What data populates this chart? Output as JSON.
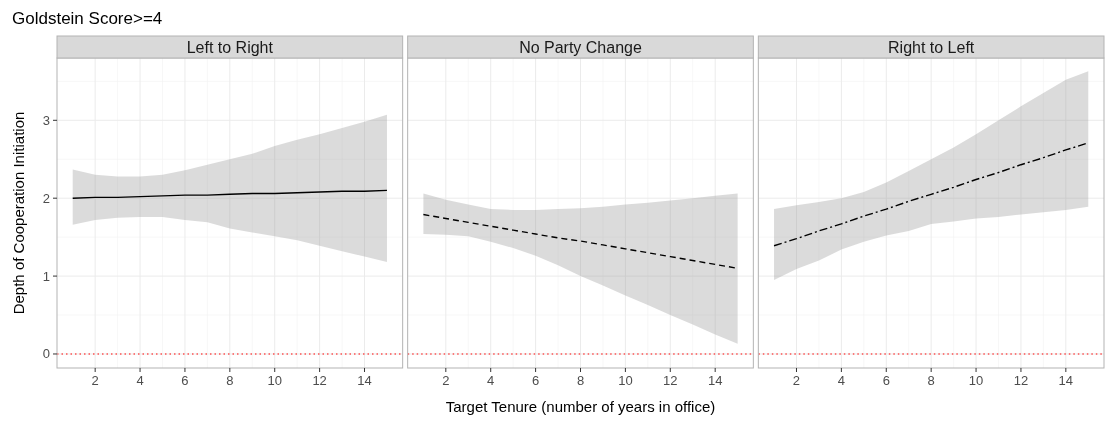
{
  "chart_data": [
    {
      "type": "line",
      "title": "Goldstein Score>=4",
      "subtitle": "Left to Right",
      "ylabel": "Depth of Cooperation Initiation",
      "xlim": [
        0.3,
        15.7
      ],
      "ylim": [
        -0.18,
        3.8
      ],
      "xticks": [
        2,
        4,
        6,
        8,
        10,
        12,
        14
      ],
      "yticks": [
        0,
        1,
        2,
        3
      ],
      "grid": true,
      "line_style": "solid",
      "ref_lines": [
        {
          "axis": "y",
          "value": 0,
          "color": "#ff0000",
          "line_style": "dotted"
        }
      ],
      "series": [
        {
          "color": "#000000",
          "x": [
            1,
            2,
            3,
            4,
            5,
            6,
            7,
            8,
            9,
            10,
            11,
            12,
            13,
            14,
            15
          ],
          "values": [
            2.0,
            2.01,
            2.01,
            2.02,
            2.03,
            2.04,
            2.04,
            2.05,
            2.06,
            2.06,
            2.07,
            2.08,
            2.09,
            2.09,
            2.1
          ],
          "lower": [
            1.66,
            1.72,
            1.75,
            1.76,
            1.76,
            1.72,
            1.69,
            1.61,
            1.56,
            1.51,
            1.46,
            1.39,
            1.32,
            1.25,
            1.18
          ],
          "upper": [
            2.37,
            2.3,
            2.28,
            2.28,
            2.3,
            2.36,
            2.43,
            2.5,
            2.57,
            2.67,
            2.75,
            2.82,
            2.9,
            2.98,
            3.07
          ]
        }
      ]
    },
    {
      "type": "line",
      "subtitle": "No Party Change",
      "xlabel": "Target Tenure (number of years in office)",
      "xlim": [
        0.3,
        15.7
      ],
      "ylim": [
        -0.18,
        3.8
      ],
      "xticks": [
        2,
        4,
        6,
        8,
        10,
        12,
        14
      ],
      "yticks": [
        0,
        1,
        2,
        3
      ],
      "tick_labels": "x",
      "grid": true,
      "line_style": "dashed",
      "ref_lines": [
        {
          "axis": "y",
          "value": 0,
          "color": "#ff0000",
          "line_style": "dotted"
        }
      ],
      "series": [
        {
          "color": "#000000",
          "x": [
            1,
            2,
            3,
            4,
            5,
            6,
            7,
            8,
            9,
            10,
            11,
            12,
            13,
            14,
            15
          ],
          "values": [
            1.79,
            1.74,
            1.69,
            1.64,
            1.59,
            1.54,
            1.49,
            1.45,
            1.4,
            1.35,
            1.3,
            1.25,
            1.2,
            1.15,
            1.1
          ],
          "lower": [
            1.54,
            1.53,
            1.51,
            1.44,
            1.36,
            1.26,
            1.14,
            1.0,
            0.88,
            0.75,
            0.63,
            0.5,
            0.38,
            0.25,
            0.13
          ],
          "upper": [
            2.06,
            1.98,
            1.92,
            1.86,
            1.85,
            1.85,
            1.86,
            1.87,
            1.89,
            1.92,
            1.94,
            1.97,
            2.0,
            2.03,
            2.06
          ]
        }
      ]
    },
    {
      "type": "line",
      "subtitle": "Right to Left",
      "xlim": [
        0.3,
        15.7
      ],
      "ylim": [
        -0.18,
        3.8
      ],
      "xticks": [
        2,
        4,
        6,
        8,
        10,
        12,
        14
      ],
      "yticks": [
        0,
        1,
        2,
        3
      ],
      "tick_labels": "x",
      "grid": true,
      "line_style": "dashdot",
      "ref_lines": [
        {
          "axis": "y",
          "value": 0,
          "color": "#ff0000",
          "line_style": "dotted"
        }
      ],
      "series": [
        {
          "color": "#000000",
          "x": [
            1,
            2,
            3,
            4,
            5,
            6,
            7,
            8,
            9,
            10,
            11,
            12,
            13,
            14,
            15
          ],
          "values": [
            1.39,
            1.48,
            1.58,
            1.67,
            1.77,
            1.86,
            1.96,
            2.05,
            2.14,
            2.24,
            2.33,
            2.43,
            2.52,
            2.62,
            2.71
          ],
          "lower": [
            0.95,
            1.09,
            1.2,
            1.34,
            1.44,
            1.52,
            1.58,
            1.67,
            1.7,
            1.74,
            1.76,
            1.79,
            1.82,
            1.85,
            1.89
          ],
          "upper": [
            1.86,
            1.91,
            1.95,
            2.0,
            2.08,
            2.2,
            2.35,
            2.5,
            2.65,
            2.82,
            3.0,
            3.18,
            3.35,
            3.52,
            3.63
          ]
        }
      ]
    }
  ]
}
